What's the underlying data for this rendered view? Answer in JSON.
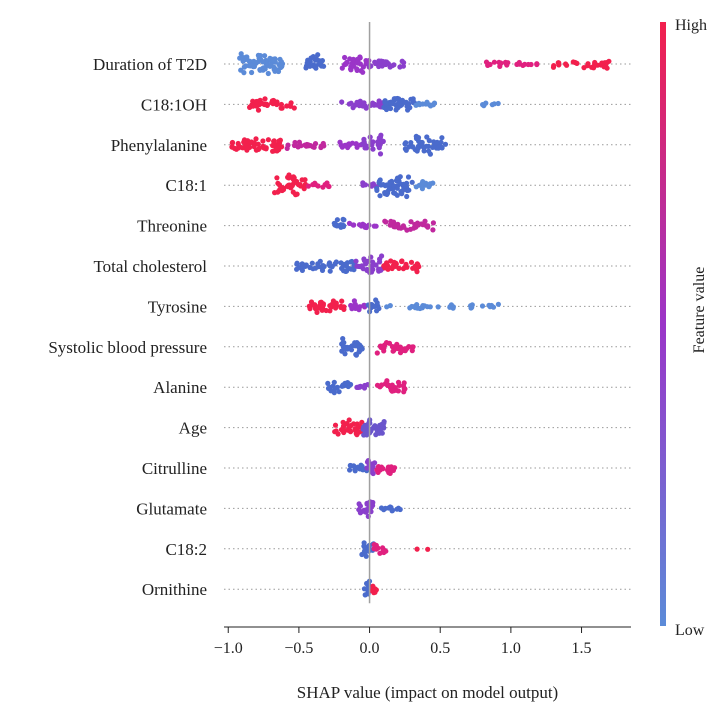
{
  "chart_data": {
    "type": "scatter",
    "title": "",
    "xlabel": "SHAP value (impact on model output)",
    "ylabel": "",
    "xlim": [
      -1.03,
      1.85
    ],
    "xticks": [
      -1.0,
      -0.5,
      0.0,
      0.5,
      1.0,
      1.5
    ],
    "xtick_labels": [
      "−1.0",
      "−0.5",
      "0.0",
      "0.5",
      "1.0",
      "1.5"
    ],
    "grid": false,
    "zero_line": true,
    "colorbar": {
      "label": "Feature value",
      "high_label": "High",
      "low_label": "Low",
      "low_color": "#5b8bd8",
      "mid_color": "#9b35c8",
      "high_color": "#f2204d"
    },
    "features": [
      {
        "name": "Duration of T2D",
        "clusters": [
          {
            "min": -0.92,
            "max": -0.6,
            "color": "#5b8bd8",
            "count": 70,
            "spread": 11
          },
          {
            "min": -0.45,
            "max": -0.32,
            "color": "#4a6bcc",
            "count": 26,
            "spread": 10
          },
          {
            "min": -0.2,
            "max": 0.0,
            "color": "#9b35c8",
            "count": 34,
            "spread": 9
          },
          {
            "min": 0.0,
            "max": 0.25,
            "color": "#8a3fcc",
            "count": 24,
            "spread": 5
          },
          {
            "min": 0.8,
            "max": 1.2,
            "color": "#e0207f",
            "count": 22,
            "spread": 3
          },
          {
            "min": 1.3,
            "max": 1.7,
            "color": "#f2204d",
            "count": 32,
            "spread": 5
          }
        ]
      },
      {
        "name": "C18:1OH",
        "clusters": [
          {
            "min": -0.85,
            "max": -0.52,
            "color": "#f2204d",
            "count": 40,
            "spread": 7
          },
          {
            "min": -0.2,
            "max": 0.1,
            "color": "#8a3fcc",
            "count": 26,
            "spread": 5
          },
          {
            "min": 0.1,
            "max": 0.32,
            "color": "#4a6bcc",
            "count": 40,
            "spread": 9
          },
          {
            "min": 0.32,
            "max": 0.5,
            "color": "#5b8bd8",
            "count": 12,
            "spread": 3
          },
          {
            "min": 0.8,
            "max": 0.98,
            "color": "#5b8bd8",
            "count": 6,
            "spread": 2
          }
        ]
      },
      {
        "name": "Phenylalanine",
        "clusters": [
          {
            "min": -0.98,
            "max": -0.62,
            "color": "#f2204d",
            "count": 55,
            "spread": 7
          },
          {
            "min": -0.6,
            "max": -0.3,
            "color": "#c0289e",
            "count": 22,
            "spread": 4
          },
          {
            "min": -0.22,
            "max": -0.03,
            "color": "#9b35c8",
            "count": 16,
            "spread": 4
          },
          {
            "min": -0.05,
            "max": 0.1,
            "color": "#8a3fcc",
            "count": 26,
            "spread": 10
          },
          {
            "min": 0.25,
            "max": 0.55,
            "color": "#4a6bcc",
            "count": 42,
            "spread": 10
          }
        ]
      },
      {
        "name": "C18:1",
        "clusters": [
          {
            "min": -0.68,
            "max": -0.45,
            "color": "#f2204d",
            "count": 40,
            "spread": 11
          },
          {
            "min": -0.45,
            "max": -0.28,
            "color": "#e0207f",
            "count": 10,
            "spread": 3
          },
          {
            "min": -0.05,
            "max": 0.05,
            "color": "#8a3fcc",
            "count": 8,
            "spread": 3
          },
          {
            "min": 0.05,
            "max": 0.32,
            "color": "#4a6bcc",
            "count": 55,
            "spread": 12
          },
          {
            "min": 0.32,
            "max": 0.46,
            "color": "#5b8bd8",
            "count": 12,
            "spread": 4
          }
        ]
      },
      {
        "name": "Threonine",
        "clusters": [
          {
            "min": -0.25,
            "max": -0.18,
            "color": "#4a6bcc",
            "count": 16,
            "spread": 9
          },
          {
            "min": -0.15,
            "max": 0.05,
            "color": "#9b35c8",
            "count": 12,
            "spread": 3
          },
          {
            "min": 0.1,
            "max": 0.46,
            "color": "#c0289e",
            "count": 32,
            "spread": 6
          }
        ]
      },
      {
        "name": "Total cholesterol",
        "clusters": [
          {
            "min": -0.52,
            "max": -0.32,
            "color": "#4a6bcc",
            "count": 22,
            "spread": 6
          },
          {
            "min": -0.3,
            "max": -0.1,
            "color": "#4a6bcc",
            "count": 24,
            "spread": 8
          },
          {
            "min": -0.1,
            "max": 0.1,
            "color": "#8a3fcc",
            "count": 30,
            "spread": 11
          },
          {
            "min": 0.1,
            "max": 0.35,
            "color": "#f2204d",
            "count": 34,
            "spread": 8
          }
        ]
      },
      {
        "name": "Tyrosine",
        "clusters": [
          {
            "min": -0.45,
            "max": -0.18,
            "color": "#f2204d",
            "count": 36,
            "spread": 7
          },
          {
            "min": -0.15,
            "max": -0.03,
            "color": "#9b35c8",
            "count": 16,
            "spread": 6
          },
          {
            "min": -0.02,
            "max": 0.08,
            "color": "#4a6bcc",
            "count": 14,
            "spread": 8
          },
          {
            "min": 0.1,
            "max": 0.5,
            "color": "#5b8bd8",
            "count": 16,
            "spread": 3
          },
          {
            "min": 0.55,
            "max": 0.95,
            "color": "#5b8bd8",
            "count": 16,
            "spread": 3
          }
        ]
      },
      {
        "name": "Systolic blood pressure",
        "clusters": [
          {
            "min": -0.2,
            "max": -0.05,
            "color": "#4a6bcc",
            "count": 30,
            "spread": 11
          },
          {
            "min": 0.05,
            "max": 0.32,
            "color": "#e0207f",
            "count": 34,
            "spread": 7
          }
        ]
      },
      {
        "name": "Alanine",
        "clusters": [
          {
            "min": -0.3,
            "max": -0.12,
            "color": "#4a6bcc",
            "count": 20,
            "spread": 7
          },
          {
            "min": -0.1,
            "max": 0.0,
            "color": "#8a3fcc",
            "count": 8,
            "spread": 3
          },
          {
            "min": 0.05,
            "max": 0.25,
            "color": "#e0207f",
            "count": 28,
            "spread": 9
          }
        ]
      },
      {
        "name": "Age",
        "clusters": [
          {
            "min": -0.25,
            "max": -0.05,
            "color": "#f2204d",
            "count": 32,
            "spread": 8
          },
          {
            "min": -0.05,
            "max": 0.12,
            "color": "#6a55cc",
            "count": 34,
            "spread": 10
          }
        ]
      },
      {
        "name": "Citrulline",
        "clusters": [
          {
            "min": -0.18,
            "max": -0.02,
            "color": "#4a6bcc",
            "count": 16,
            "spread": 4
          },
          {
            "min": -0.02,
            "max": 0.04,
            "color": "#8a3fcc",
            "count": 14,
            "spread": 9
          },
          {
            "min": 0.05,
            "max": 0.18,
            "color": "#e0207f",
            "count": 16,
            "spread": 6
          }
        ]
      },
      {
        "name": "Glutamate",
        "clusters": [
          {
            "min": -0.08,
            "max": 0.03,
            "color": "#8a3fcc",
            "count": 22,
            "spread": 9
          },
          {
            "min": 0.08,
            "max": 0.22,
            "color": "#4a6bcc",
            "count": 12,
            "spread": 3
          }
        ]
      },
      {
        "name": "C18:2",
        "clusters": [
          {
            "min": -0.06,
            "max": 0.03,
            "color": "#4a6bcc",
            "count": 18,
            "spread": 9
          },
          {
            "min": 0.03,
            "max": 0.12,
            "color": "#e0207f",
            "count": 14,
            "spread": 5
          },
          {
            "min": 0.3,
            "max": 0.42,
            "color": "#f2204d",
            "count": 2,
            "spread": 1
          }
        ]
      },
      {
        "name": "Ornithine",
        "clusters": [
          {
            "min": -0.05,
            "max": 0.01,
            "color": "#4a6bcc",
            "count": 16,
            "spread": 9
          },
          {
            "min": 0.01,
            "max": 0.06,
            "color": "#f2204d",
            "count": 10,
            "spread": 6
          }
        ]
      }
    ]
  }
}
